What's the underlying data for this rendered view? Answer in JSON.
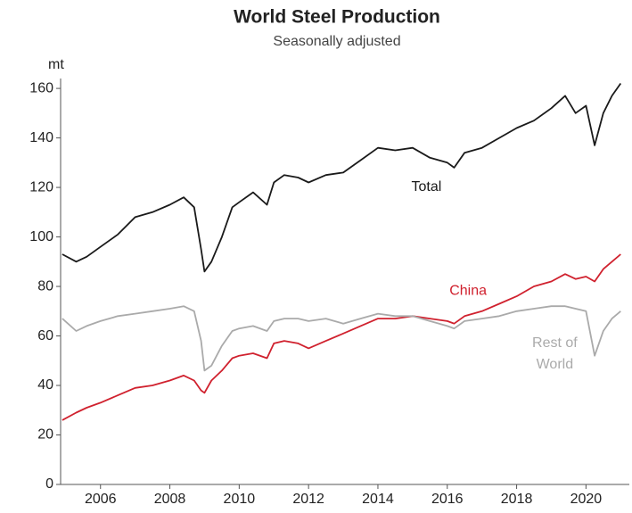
{
  "chart_data": {
    "type": "line",
    "title": "World Steel Production",
    "subtitle": "Seasonally adjusted",
    "y_label": "mt",
    "x": [
      2004.9,
      2005.3,
      2005.6,
      2006.0,
      2006.5,
      2007.0,
      2007.5,
      2008.0,
      2008.4,
      2008.7,
      2008.9,
      2009.0,
      2009.2,
      2009.5,
      2009.8,
      2010.0,
      2010.4,
      2010.8,
      2011.0,
      2011.3,
      2011.7,
      2012.0,
      2012.5,
      2013.0,
      2013.5,
      2014.0,
      2014.5,
      2015.0,
      2015.5,
      2016.0,
      2016.2,
      2016.5,
      2017.0,
      2017.5,
      2018.0,
      2018.5,
      2019.0,
      2019.4,
      2019.7,
      2020.0,
      2020.25,
      2020.5,
      2020.75,
      2021.0
    ],
    "series": [
      {
        "name": "Total",
        "color": "#1a1a1a",
        "values": [
          93,
          90,
          92,
          96,
          101,
          108,
          110,
          113,
          116,
          112,
          95,
          86,
          90,
          100,
          112,
          114,
          118,
          113,
          122,
          125,
          124,
          122,
          125,
          126,
          131,
          136,
          135,
          136,
          132,
          130,
          128,
          134,
          136,
          140,
          144,
          147,
          152,
          157,
          150,
          153,
          137,
          150,
          157,
          162
        ]
      },
      {
        "name": "China",
        "color": "#d0212e",
        "values": [
          26,
          29,
          31,
          33,
          36,
          39,
          40,
          42,
          44,
          42,
          38,
          37,
          42,
          46,
          51,
          52,
          53,
          51,
          57,
          58,
          57,
          55,
          58,
          61,
          64,
          67,
          67,
          68,
          67,
          66,
          65,
          68,
          70,
          73,
          76,
          80,
          82,
          85,
          83,
          84,
          82,
          87,
          90,
          93
        ]
      },
      {
        "name": "Rest of World",
        "color": "#aaaaaa",
        "values": [
          67,
          62,
          64,
          66,
          68,
          69,
          70,
          71,
          72,
          70,
          58,
          46,
          48,
          56,
          62,
          63,
          64,
          62,
          66,
          67,
          67,
          66,
          67,
          65,
          67,
          69,
          68,
          68,
          66,
          64,
          63,
          66,
          67,
          68,
          70,
          71,
          72,
          72,
          71,
          70,
          52,
          62,
          67,
          70
        ]
      }
    ],
    "annotations": [
      {
        "text": [
          "Total"
        ],
        "x": 2015.4,
        "y": 120,
        "color": "#1a1a1a"
      },
      {
        "text": [
          "China"
        ],
        "x": 2016.6,
        "y": 78,
        "color": "#d0212e"
      },
      {
        "text": [
          "Rest of",
          "World"
        ],
        "x": 2019.1,
        "y": 57,
        "color": "#aaaaaa"
      }
    ],
    "xlim": [
      2004.85,
      2021.25
    ],
    "xticks": [
      2006,
      2008,
      2010,
      2012,
      2014,
      2016,
      2018,
      2020
    ],
    "ylim": [
      0,
      164
    ],
    "yticks": [
      0,
      20,
      40,
      60,
      80,
      100,
      120,
      140,
      160
    ],
    "grid": false
  }
}
